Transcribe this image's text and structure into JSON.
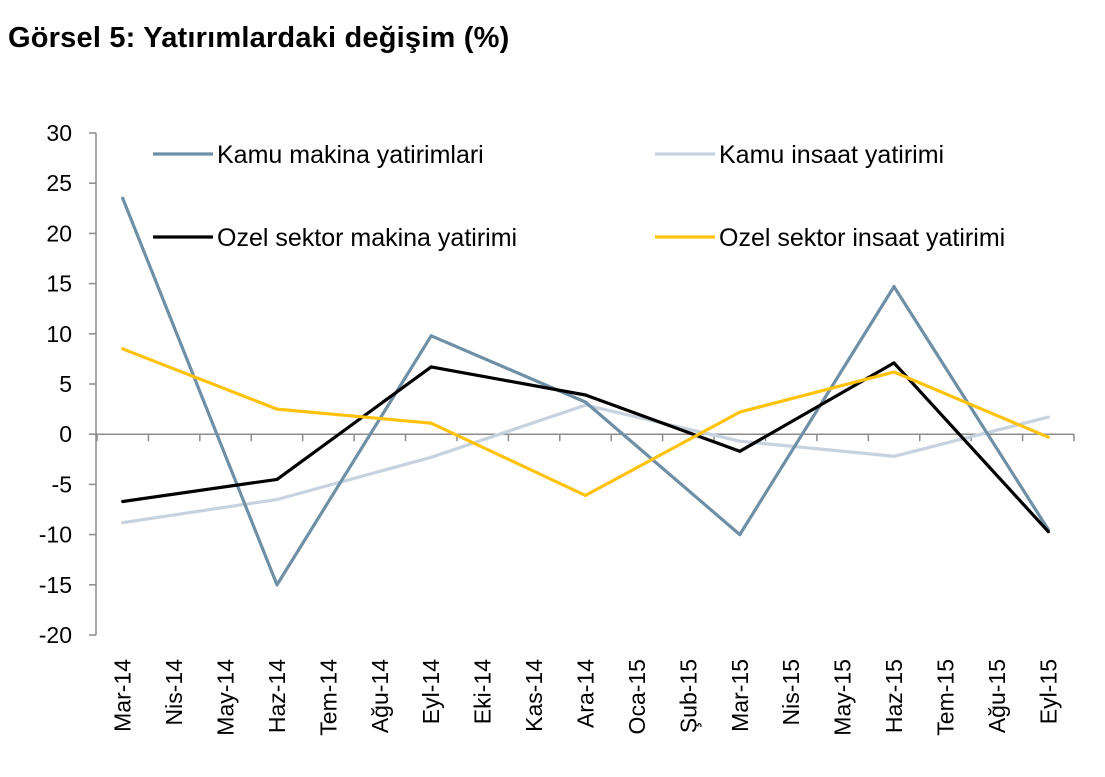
{
  "figure": {
    "title": "Görsel 5: Yatırımlardaki değişim (%)"
  },
  "chart_data": {
    "type": "line",
    "title": "Görsel 5: Yatırımlardaki değişim (%)",
    "xlabel": "",
    "ylabel": "",
    "ylim": [
      -20,
      30
    ],
    "yticks": [
      30,
      25,
      20,
      15,
      10,
      5,
      0,
      -5,
      -10,
      -15,
      -20
    ],
    "grid": false,
    "legend_position": "top",
    "categories": [
      "Mar-14",
      "Nis-14",
      "May-14",
      "Haz-14",
      "Tem-14",
      "Ağu-14",
      "Eyl-14",
      "Eki-14",
      "Kas-14",
      "Ara-14",
      "Oca-15",
      "Şub-15",
      "Mar-15",
      "Nis-15",
      "May-15",
      "Haz-15",
      "Tem-15",
      "Ağu-15",
      "Eyl-15"
    ],
    "series": [
      {
        "name": "Kamu makina yatirimlari",
        "color": "#6e8fa6",
        "x": [
          "Mar-14",
          "Haz-14",
          "Eyl-14",
          "Ara-14",
          "Mar-15",
          "Haz-15",
          "Eyl-15"
        ],
        "values": [
          23.5,
          -15,
          9.8,
          3.2,
          -10,
          14.7,
          -9.5
        ]
      },
      {
        "name": "Kamu insaat yatirimi",
        "color": "#c6d3df",
        "x": [
          "Mar-14",
          "Haz-14",
          "Eyl-14",
          "Ara-14",
          "Mar-15",
          "Haz-15",
          "Eyl-15"
        ],
        "values": [
          -8.8,
          -6.5,
          -2.3,
          2.9,
          -0.7,
          -2.2,
          1.7
        ]
      },
      {
        "name": "Ozel sektor makina yatirimi",
        "color": "#000000",
        "x": [
          "Mar-14",
          "Haz-14",
          "Eyl-14",
          "Ara-14",
          "Mar-15",
          "Haz-15",
          "Eyl-15"
        ],
        "values": [
          -6.7,
          -4.5,
          6.7,
          3.9,
          -1.7,
          7.1,
          -9.7
        ]
      },
      {
        "name": "Ozel sektor insaat yatirimi",
        "color": "#ffc20e",
        "x": [
          "Mar-14",
          "Haz-14",
          "Eyl-14",
          "Ara-14",
          "Mar-15",
          "Haz-15",
          "Eyl-15"
        ],
        "values": [
          8.5,
          2.5,
          1.1,
          -6.1,
          2.2,
          6.2,
          -0.3
        ]
      }
    ]
  }
}
